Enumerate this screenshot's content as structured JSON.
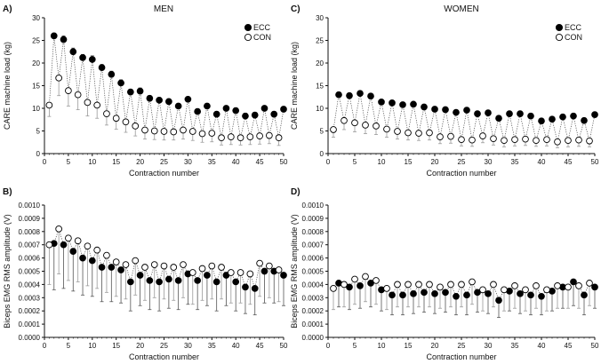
{
  "chart_data": [
    {
      "id": "A",
      "type": "scatter",
      "panel_label": "A)",
      "title": "MEN",
      "xlabel": "Contraction number",
      "ylabel": "CARE machine load (kg)",
      "xlim": [
        0,
        50
      ],
      "ylim": [
        0,
        30
      ],
      "xticks": [
        0,
        5,
        10,
        15,
        20,
        25,
        30,
        35,
        40,
        45,
        50
      ],
      "xtick_labels": [
        "0",
        "5",
        "10",
        "15",
        "20",
        "25",
        "30",
        "35",
        "40",
        "45",
        "50"
      ],
      "yticks": [
        0,
        5,
        10,
        15,
        20,
        25,
        30
      ],
      "ytick_labels": [
        "0",
        "5",
        "10",
        "15",
        "20",
        "25",
        "30"
      ],
      "legend": {
        "position": "top-right",
        "entries": [
          "ECC",
          "CON"
        ]
      },
      "series": [
        {
          "name": "ECC",
          "marker": "filled-circle",
          "error_direction": "up",
          "x": [
            2,
            4,
            6,
            8,
            10,
            12,
            14,
            16,
            18,
            20,
            22,
            24,
            26,
            28,
            30,
            32,
            34,
            36,
            38,
            40,
            42,
            44,
            46,
            48,
            50
          ],
          "values": [
            26,
            25.2,
            22.5,
            21.2,
            20.8,
            19,
            17.5,
            15.6,
            13.6,
            13.8,
            12.2,
            11.8,
            11.5,
            10.5,
            12,
            9.3,
            10.5,
            8.7,
            10,
            9.5,
            8.3,
            8.5,
            10,
            8.7,
            9.8
          ],
          "error": [
            0.6,
            0.8,
            0.8,
            0.7,
            0.8,
            0.7,
            0.7,
            0.7,
            0.6,
            0.7,
            0.6,
            0.6,
            0.6,
            0.6,
            0.6,
            0.6,
            0.6,
            0.6,
            0.6,
            0.6,
            0.6,
            0.6,
            0.6,
            0.6,
            0.6
          ]
        },
        {
          "name": "CON",
          "marker": "open-circle",
          "error_direction": "down",
          "x": [
            1,
            3,
            5,
            7,
            9,
            11,
            13,
            15,
            17,
            19,
            21,
            23,
            25,
            27,
            29,
            31,
            33,
            35,
            37,
            39,
            41,
            43,
            45,
            47,
            49
          ],
          "values": [
            10.7,
            16.7,
            13.9,
            13,
            11.3,
            10.7,
            8.8,
            7.8,
            7,
            6.1,
            5.2,
            5,
            4.9,
            4.8,
            5.2,
            4.9,
            4.4,
            4.5,
            3.5,
            3.7,
            3.5,
            3.7,
            3.9,
            4,
            3.5
          ],
          "error": [
            2.5,
            3.9,
            3.4,
            3.3,
            3,
            2.9,
            2.5,
            2.4,
            2.3,
            2.2,
            2,
            1.9,
            1.9,
            1.8,
            2,
            2,
            1.9,
            1.9,
            1.6,
            1.7,
            1.6,
            1.7,
            1.8,
            1.8,
            1.7
          ]
        }
      ]
    },
    {
      "id": "C",
      "type": "scatter",
      "panel_label": "C)",
      "title": "WOMEN",
      "xlabel": "Contraction number",
      "ylabel": "CARE machine load (kg)",
      "xlim": [
        0,
        50
      ],
      "ylim": [
        0,
        30
      ],
      "xticks": [
        0,
        5,
        10,
        15,
        20,
        25,
        30,
        35,
        40,
        45,
        50
      ],
      "xtick_labels": [
        "0",
        "5",
        "10",
        "15",
        "20",
        "25",
        "30",
        "35",
        "40",
        "45",
        "50"
      ],
      "yticks": [
        0,
        5,
        10,
        15,
        20,
        25,
        30
      ],
      "ytick_labels": [
        "0",
        "5",
        "10",
        "15",
        "20",
        "25",
        "30"
      ],
      "legend": {
        "position": "top-right",
        "entries": [
          "ECC",
          "CON"
        ]
      },
      "series": [
        {
          "name": "ECC",
          "marker": "filled-circle",
          "error_direction": "up",
          "x": [
            2,
            4,
            6,
            8,
            10,
            12,
            14,
            16,
            18,
            20,
            22,
            24,
            26,
            28,
            30,
            32,
            34,
            36,
            38,
            40,
            42,
            44,
            46,
            48,
            50
          ],
          "values": [
            13,
            12.8,
            13.3,
            12.7,
            11.4,
            11.2,
            10.8,
            10.9,
            10.3,
            9.8,
            9.7,
            9.1,
            9.6,
            8.8,
            9,
            7.8,
            8.8,
            8.8,
            8.3,
            7.2,
            7.6,
            8.1,
            8.3,
            7.3,
            8.6
          ],
          "error": [
            0.5,
            0.5,
            0.5,
            0.5,
            0.5,
            0.5,
            0.5,
            0.5,
            0.5,
            0.5,
            0.5,
            0.5,
            0.5,
            0.5,
            0.5,
            0.5,
            0.5,
            0.5,
            0.5,
            0.5,
            0.5,
            0.5,
            0.5,
            0.5,
            0.5
          ]
        },
        {
          "name": "CON",
          "marker": "open-circle",
          "error_direction": "down",
          "x": [
            1,
            3,
            5,
            7,
            9,
            11,
            13,
            15,
            17,
            19,
            21,
            23,
            25,
            27,
            29,
            31,
            33,
            35,
            37,
            39,
            41,
            43,
            45,
            47,
            49
          ],
          "values": [
            5.3,
            7.3,
            6.8,
            6.3,
            6.1,
            5.4,
            4.9,
            4.6,
            4.5,
            4.6,
            3.7,
            3.8,
            3.1,
            3,
            3.9,
            3.3,
            2.9,
            3.1,
            3.2,
            2.9,
            3.1,
            2.6,
            2.9,
            3,
            2.8
          ],
          "error": [
            1.7,
            2,
            2,
            1.9,
            1.9,
            1.8,
            1.7,
            1.6,
            1.6,
            1.6,
            1.5,
            1.5,
            1.4,
            1.4,
            1.5,
            1.4,
            1.4,
            1.4,
            1.4,
            1.3,
            1.4,
            1.3,
            1.4,
            1.4,
            1.3
          ]
        }
      ]
    },
    {
      "id": "B",
      "type": "scatter",
      "panel_label": "B)",
      "title": "",
      "xlabel": "Contraction number",
      "ylabel": "Biceps EMG RMS amplitude (V)",
      "xlim": [
        0,
        50
      ],
      "ylim": [
        0,
        0.001
      ],
      "xticks": [
        0,
        5,
        10,
        15,
        20,
        25,
        30,
        35,
        40,
        45,
        50
      ],
      "xtick_labels": [
        "0",
        "5",
        "10",
        "15",
        "20",
        "25",
        "30",
        "35",
        "40",
        "45",
        "50"
      ],
      "yticks": [
        0,
        0.0001,
        0.0002,
        0.0003,
        0.0004,
        0.0005,
        0.0006,
        0.0007,
        0.0008,
        0.0009,
        0.001
      ],
      "ytick_labels": [
        "0.0000",
        "0.0001",
        "0.0002",
        "0.0003",
        "0.0004",
        "0.0005",
        "0.0006",
        "0.0007",
        "0.0008",
        "0.0009",
        "0.0010"
      ],
      "series": [
        {
          "name": "ECC",
          "marker": "filled-circle",
          "error_direction": "down",
          "x": [
            2,
            4,
            6,
            8,
            10,
            12,
            14,
            16,
            18,
            20,
            22,
            24,
            26,
            28,
            30,
            32,
            34,
            36,
            38,
            40,
            42,
            44,
            46,
            48,
            50
          ],
          "values": [
            0.00071,
            0.0007,
            0.00065,
            0.0006,
            0.00058,
            0.00053,
            0.00053,
            0.00051,
            0.00042,
            0.00047,
            0.00043,
            0.00042,
            0.00044,
            0.00043,
            0.00048,
            0.00043,
            0.00047,
            0.00042,
            0.00047,
            0.00042,
            0.00038,
            0.00037,
            0.0005,
            0.0005,
            0.00047
          ],
          "error": [
            0.00035,
            0.00033,
            0.0003,
            0.00028,
            0.00027,
            0.00026,
            0.00026,
            0.00025,
            0.00022,
            0.00023,
            0.00022,
            0.00022,
            0.00022,
            0.00022,
            0.00023,
            0.00022,
            0.00023,
            0.00022,
            0.00023,
            0.00022,
            0.0002,
            0.0002,
            0.00024,
            0.00024,
            0.00023
          ]
        },
        {
          "name": "CON",
          "marker": "open-circle",
          "error_direction": "down",
          "x": [
            1,
            3,
            5,
            7,
            9,
            11,
            13,
            15,
            17,
            19,
            21,
            23,
            25,
            27,
            29,
            31,
            33,
            35,
            37,
            39,
            41,
            43,
            45,
            47,
            49
          ],
          "values": [
            0.0007,
            0.00082,
            0.00075,
            0.00073,
            0.00069,
            0.00066,
            0.00062,
            0.00057,
            0.00055,
            0.00058,
            0.00053,
            0.00055,
            0.00054,
            0.00053,
            0.00055,
            0.00049,
            0.00052,
            0.00054,
            0.00053,
            0.00049,
            0.00049,
            0.00048,
            0.00056,
            0.00054,
            0.00051
          ],
          "error": [
            0.0003,
            0.00034,
            0.00032,
            0.00031,
            0.0003,
            0.00029,
            0.00028,
            0.00026,
            0.00026,
            0.00026,
            0.00025,
            0.00025,
            0.00025,
            0.00025,
            0.00025,
            0.00024,
            0.00024,
            0.00025,
            0.00024,
            0.00023,
            0.00023,
            0.00023,
            0.00025,
            0.00024,
            0.00024
          ]
        }
      ]
    },
    {
      "id": "D",
      "type": "scatter",
      "panel_label": "D)",
      "title": "",
      "xlabel": "Contraction number",
      "ylabel": "Biceps EMG RMS amplitude (V)",
      "xlim": [
        0,
        50
      ],
      "ylim": [
        0,
        0.001
      ],
      "xticks": [
        0,
        5,
        10,
        15,
        20,
        25,
        30,
        35,
        40,
        45,
        50
      ],
      "xtick_labels": [
        "0",
        "5",
        "10",
        "15",
        "20",
        "25",
        "30",
        "35",
        "40",
        "45",
        "50"
      ],
      "yticks": [
        0,
        0.0001,
        0.0002,
        0.0003,
        0.0004,
        0.0005,
        0.0006,
        0.0007,
        0.0008,
        0.0009,
        0.001
      ],
      "ytick_labels": [
        "0.0000",
        "0.0001",
        "0.0002",
        "0.0003",
        "0.0004",
        "0.0005",
        "0.0006",
        "0.0007",
        "0.0008",
        "0.0009",
        "0.0010"
      ],
      "series": [
        {
          "name": "ECC",
          "marker": "filled-circle",
          "error_direction": "down",
          "x": [
            2,
            4,
            6,
            8,
            10,
            12,
            14,
            16,
            18,
            20,
            22,
            24,
            26,
            28,
            30,
            32,
            34,
            36,
            38,
            40,
            42,
            44,
            46,
            48,
            50
          ],
          "values": [
            0.00041,
            0.00038,
            0.00039,
            0.00041,
            0.00036,
            0.00032,
            0.00032,
            0.00033,
            0.00034,
            0.00033,
            0.00034,
            0.00031,
            0.00032,
            0.00034,
            0.00033,
            0.00028,
            0.00035,
            0.00033,
            0.00032,
            0.00031,
            0.00035,
            0.00038,
            0.00042,
            0.00032,
            0.00038
          ],
          "error": [
            0.00018,
            0.00017,
            0.00017,
            0.00018,
            0.00016,
            0.00015,
            0.00015,
            0.00015,
            0.00015,
            0.00015,
            0.00015,
            0.00014,
            0.00015,
            0.00015,
            0.00015,
            0.00013,
            0.00015,
            0.00015,
            0.00015,
            0.00014,
            0.00015,
            0.00016,
            0.00018,
            0.00015,
            0.00016
          ]
        },
        {
          "name": "CON",
          "marker": "open-circle",
          "error_direction": "down",
          "x": [
            1,
            3,
            5,
            7,
            9,
            11,
            13,
            15,
            17,
            19,
            21,
            23,
            25,
            27,
            29,
            31,
            33,
            35,
            37,
            39,
            41,
            43,
            45,
            47,
            49
          ],
          "values": [
            0.00037,
            0.0004,
            0.00044,
            0.00046,
            0.00043,
            0.00037,
            0.0004,
            0.0004,
            0.0004,
            0.0004,
            0.00038,
            0.0004,
            0.0004,
            0.00042,
            0.00036,
            0.0004,
            0.00036,
            0.00039,
            0.00036,
            0.00039,
            0.00036,
            0.00039,
            0.00038,
            0.00039,
            0.00041
          ],
          "error": [
            0.00016,
            0.00017,
            0.00019,
            0.00019,
            0.00018,
            0.00016,
            0.00017,
            0.00017,
            0.00017,
            0.00017,
            0.00016,
            0.00017,
            0.00017,
            0.00017,
            0.00016,
            0.00017,
            0.00016,
            0.00017,
            0.00016,
            0.00017,
            0.00016,
            0.00017,
            0.00016,
            0.00017,
            0.00017
          ]
        }
      ]
    }
  ]
}
